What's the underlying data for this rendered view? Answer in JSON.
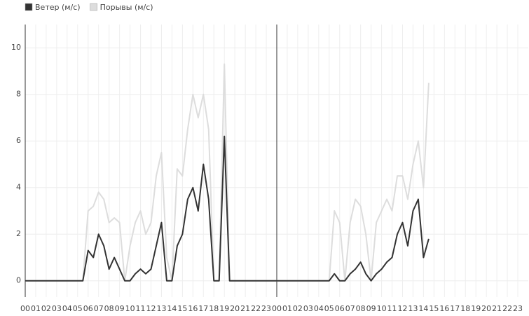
{
  "chart_data": {
    "type": "line",
    "x": [
      0,
      0.5,
      1,
      1.5,
      2,
      2.5,
      3,
      3.5,
      4,
      4.5,
      5,
      5.5,
      6,
      6.5,
      7,
      7.5,
      8,
      8.5,
      9,
      9.5,
      10,
      10.5,
      11,
      11.5,
      12,
      12.5,
      13,
      13.5,
      14,
      14.5,
      15,
      15.5,
      16,
      16.5,
      17,
      17.5,
      18,
      18.5,
      19,
      19.5,
      20,
      20.5,
      21,
      21.5,
      22,
      22.5,
      23,
      23.5,
      24,
      24.5,
      25,
      25.5,
      26,
      26.5,
      27,
      27.5,
      28,
      28.5,
      29,
      29.5,
      30,
      30.5,
      31,
      31.5,
      32,
      32.5,
      33,
      33.5,
      34,
      34.5,
      35,
      35.5,
      36,
      36.5,
      37,
      37.5,
      38,
      38.5
    ],
    "series": [
      {
        "name": "Порывы (м/с)",
        "color": "#dddddd",
        "values": [
          0,
          0,
          0,
          0,
          0,
          0,
          0,
          0,
          0,
          0,
          0,
          0,
          3,
          3.2,
          3.8,
          3.5,
          2.5,
          2.7,
          2.5,
          0,
          1.5,
          2.5,
          3,
          2,
          2.5,
          4.5,
          5.5,
          1,
          0,
          4.8,
          4.5,
          6.5,
          8,
          7,
          8,
          6.5,
          0,
          0,
          9.3,
          0,
          0,
          0,
          0,
          0,
          0,
          0,
          0,
          0,
          0,
          0,
          0,
          0,
          0,
          0,
          0,
          0,
          0,
          0,
          0,
          3,
          2.5,
          0,
          2.5,
          3.5,
          3.2,
          2,
          0,
          2.5,
          3,
          3.5,
          3,
          4.5,
          4.5,
          3.5,
          5,
          6,
          4,
          8.5
        ]
      },
      {
        "name": "Ветер (м/с)",
        "color": "#333333",
        "values": [
          0,
          0,
          0,
          0,
          0,
          0,
          0,
          0,
          0,
          0,
          0,
          0,
          1.3,
          1,
          2,
          1.5,
          0.5,
          1,
          0.5,
          0,
          0,
          0.3,
          0.5,
          0.3,
          0.5,
          1.5,
          2.5,
          0,
          0,
          1.5,
          2,
          3.5,
          4,
          3,
          5,
          3.5,
          0,
          0,
          6.2,
          0,
          0,
          0,
          0,
          0,
          0,
          0,
          0,
          0,
          0,
          0,
          0,
          0,
          0,
          0,
          0,
          0,
          0,
          0,
          0,
          0.3,
          0,
          0,
          0.3,
          0.5,
          0.8,
          0.3,
          0,
          0.3,
          0.5,
          0.8,
          1,
          2,
          2.5,
          1.5,
          3,
          3.5,
          1,
          1.8
        ]
      }
    ],
    "legend_order": [
      1,
      0
    ],
    "xlim": [
      0,
      48
    ],
    "xticks": [
      {
        "value": 0,
        "label": "00"
      },
      {
        "value": 1,
        "label": "01"
      },
      {
        "value": 2,
        "label": "02"
      },
      {
        "value": 3,
        "label": "03"
      },
      {
        "value": 4,
        "label": "04"
      },
      {
        "value": 5,
        "label": "05"
      },
      {
        "value": 6,
        "label": "06"
      },
      {
        "value": 7,
        "label": "07"
      },
      {
        "value": 8,
        "label": "08"
      },
      {
        "value": 9,
        "label": "09"
      },
      {
        "value": 10,
        "label": "10"
      },
      {
        "value": 11,
        "label": "11"
      },
      {
        "value": 12,
        "label": "12"
      },
      {
        "value": 13,
        "label": "13"
      },
      {
        "value": 14,
        "label": "14"
      },
      {
        "value": 15,
        "label": "15"
      },
      {
        "value": 16,
        "label": "16"
      },
      {
        "value": 17,
        "label": "17"
      },
      {
        "value": 18,
        "label": "18"
      },
      {
        "value": 19,
        "label": "19"
      },
      {
        "value": 20,
        "label": "20"
      },
      {
        "value": 21,
        "label": "21"
      },
      {
        "value": 22,
        "label": "22"
      },
      {
        "value": 23,
        "label": "23"
      },
      {
        "value": 24,
        "label": "00"
      },
      {
        "value": 25,
        "label": "01"
      },
      {
        "value": 26,
        "label": "02"
      },
      {
        "value": 27,
        "label": "03"
      },
      {
        "value": 28,
        "label": "04"
      },
      {
        "value": 29,
        "label": "05"
      },
      {
        "value": 30,
        "label": "06"
      },
      {
        "value": 31,
        "label": "07"
      },
      {
        "value": 32,
        "label": "08"
      },
      {
        "value": 33,
        "label": "09"
      },
      {
        "value": 34,
        "label": "10"
      },
      {
        "value": 35,
        "label": "11"
      },
      {
        "value": 36,
        "label": "12"
      },
      {
        "value": 37,
        "label": "13"
      },
      {
        "value": 38,
        "label": "14"
      },
      {
        "value": 39,
        "label": "15"
      },
      {
        "value": 40,
        "label": "16"
      },
      {
        "value": 41,
        "label": "17"
      },
      {
        "value": 42,
        "label": "18"
      },
      {
        "value": 43,
        "label": "19"
      },
      {
        "value": 44,
        "label": "20"
      },
      {
        "value": 45,
        "label": "21"
      },
      {
        "value": 46,
        "label": "22"
      },
      {
        "value": 47,
        "label": "23"
      }
    ],
    "ylim": [
      -0.7,
      11
    ],
    "yticks": [
      0,
      2,
      4,
      6,
      8,
      10
    ],
    "grid": true
  }
}
